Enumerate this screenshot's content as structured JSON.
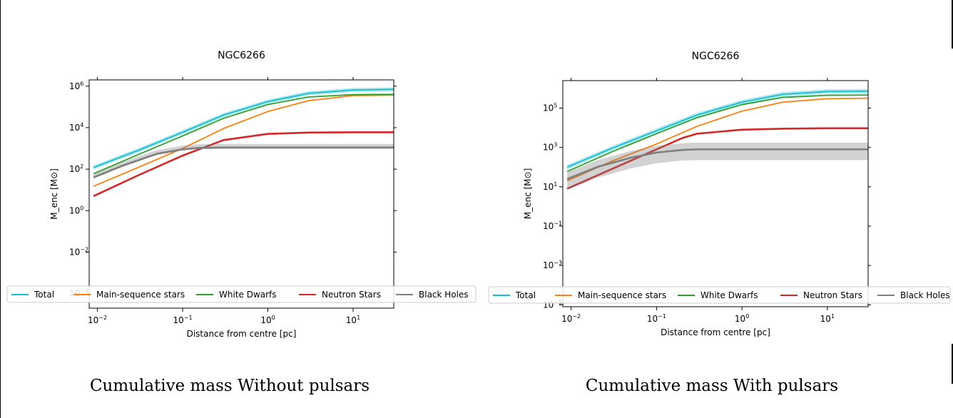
{
  "captions": {
    "left": "Cumulative mass  Without pulsars",
    "right": "Cumulative mass With pulsars"
  },
  "colors": {
    "Total": "#17becf",
    "Main-sequence stars": "#ff7f0e",
    "White Dwarfs": "#2ca02c",
    "Neutron Stars": "#d62728",
    "Black Holes": "#7f7f7f"
  },
  "chart_data": [
    {
      "type": "line",
      "title": "NGC6266",
      "xlabel": "Distance from centre [pc]",
      "ylabel": "M_enc [M⊙]",
      "xscale": "log",
      "yscale": "log",
      "xlim": [
        0.008,
        30
      ],
      "ylim": [
        2e-05,
        2000000
      ],
      "xticks": [
        {
          "value": 0.01,
          "base": "10",
          "exp": "−2"
        },
        {
          "value": 0.1,
          "base": "10",
          "exp": "−1"
        },
        {
          "value": 1,
          "base": "10",
          "exp": "0"
        },
        {
          "value": 10,
          "base": "10",
          "exp": "1"
        }
      ],
      "yticks": [
        {
          "value": 0.0001,
          "base": "10",
          "exp": "−4"
        },
        {
          "value": 0.01,
          "base": "10",
          "exp": "−2"
        },
        {
          "value": 1,
          "base": "10",
          "exp": "0"
        },
        {
          "value": 100,
          "base": "10",
          "exp": "2"
        },
        {
          "value": 10000,
          "base": "10",
          "exp": "4"
        },
        {
          "value": 1000000,
          "base": "10",
          "exp": "6"
        }
      ],
      "legend": {
        "placement": "lower center",
        "entries": [
          "Total",
          "Main-sequence stars",
          "White Dwarfs",
          "Neutron Stars",
          "Black Holes"
        ]
      },
      "series": [
        {
          "name": "Total",
          "x": [
            0.009,
            0.03,
            0.1,
            0.3,
            1,
            3,
            10,
            30
          ],
          "y": [
            120,
            800,
            6000,
            40000,
            180000,
            450000,
            650000,
            700000
          ],
          "band": [
            1.25,
            1.25
          ]
        },
        {
          "name": "Main-sequence stars",
          "x": [
            0.009,
            0.03,
            0.1,
            0.3,
            1,
            3,
            10,
            30
          ],
          "y": [
            15,
            120,
            1000,
            9000,
            60000,
            200000,
            350000,
            370000
          ]
        },
        {
          "name": "White Dwarfs",
          "x": [
            0.009,
            0.03,
            0.1,
            0.3,
            1,
            3,
            10,
            30
          ],
          "y": [
            60,
            500,
            4000,
            28000,
            130000,
            300000,
            390000,
            400000
          ]
        },
        {
          "name": "Neutron Stars",
          "x": [
            0.009,
            0.03,
            0.1,
            0.3,
            1,
            3,
            10,
            30
          ],
          "y": [
            5,
            50,
            450,
            2500,
            5000,
            5800,
            6000,
            6000
          ],
          "band": [
            1.1,
            1.1
          ]
        },
        {
          "name": "Black Holes",
          "x": [
            0.009,
            0.02,
            0.05,
            0.1,
            0.15,
            0.3,
            1,
            10,
            30
          ],
          "y": [
            40,
            150,
            550,
            900,
            1050,
            1100,
            1100,
            1100,
            1100
          ],
          "band": [
            1.5,
            1.15
          ]
        }
      ]
    },
    {
      "type": "line",
      "title": "NGC6266",
      "xlabel": "Distance from centre [pc]",
      "ylabel": "M_enc [M⊙]",
      "xscale": "log",
      "yscale": "log",
      "xlim": [
        0.008,
        30
      ],
      "ylim": [
        8e-06,
        2500000
      ],
      "xticks": [
        {
          "value": 0.01,
          "base": "10",
          "exp": "−2"
        },
        {
          "value": 0.1,
          "base": "10",
          "exp": "−1"
        },
        {
          "value": 1,
          "base": "10",
          "exp": "0"
        },
        {
          "value": 10,
          "base": "10",
          "exp": "1"
        }
      ],
      "yticks": [
        {
          "value": 1e-05,
          "base": "10",
          "exp": "−5"
        },
        {
          "value": 0.001,
          "base": "10",
          "exp": "−3"
        },
        {
          "value": 0.1,
          "base": "10",
          "exp": "−1"
        },
        {
          "value": 10,
          "base": "10",
          "exp": "1"
        },
        {
          "value": 1000,
          "base": "10",
          "exp": "3"
        },
        {
          "value": 100000,
          "base": "10",
          "exp": "5"
        }
      ],
      "legend": {
        "placement": "lower center",
        "entries": [
          "Total",
          "Main-sequence stars",
          "White Dwarfs",
          "Neutron Stars",
          "Black Holes"
        ]
      },
      "series": [
        {
          "name": "Total",
          "x": [
            0.009,
            0.03,
            0.1,
            0.3,
            1,
            3,
            10,
            30
          ],
          "y": [
            100,
            900,
            7000,
            45000,
            200000,
            500000,
            700000,
            720000
          ],
          "band": [
            1.3,
            1.3
          ]
        },
        {
          "name": "Main-sequence stars",
          "x": [
            0.009,
            0.03,
            0.1,
            0.3,
            1,
            3,
            10,
            30
          ],
          "y": [
            20,
            200,
            1500,
            12000,
            70000,
            200000,
            300000,
            320000
          ]
        },
        {
          "name": "White Dwarfs",
          "x": [
            0.009,
            0.03,
            0.1,
            0.3,
            1,
            3,
            10,
            30
          ],
          "y": [
            60,
            600,
            5000,
            33000,
            150000,
            350000,
            450000,
            460000
          ]
        },
        {
          "name": "Neutron Stars",
          "x": [
            0.009,
            0.03,
            0.1,
            0.2,
            0.3,
            1,
            3,
            10,
            30
          ],
          "y": [
            8,
            80,
            800,
            3000,
            5000,
            8000,
            9000,
            9500,
            9500
          ]
        },
        {
          "name": "Black Holes",
          "x": [
            0.009,
            0.02,
            0.05,
            0.1,
            0.2,
            0.3,
            1,
            10,
            30
          ],
          "y": [
            25,
            100,
            300,
            550,
            750,
            800,
            800,
            800,
            800
          ],
          "band": [
            2.2,
            3.5
          ]
        }
      ]
    }
  ]
}
